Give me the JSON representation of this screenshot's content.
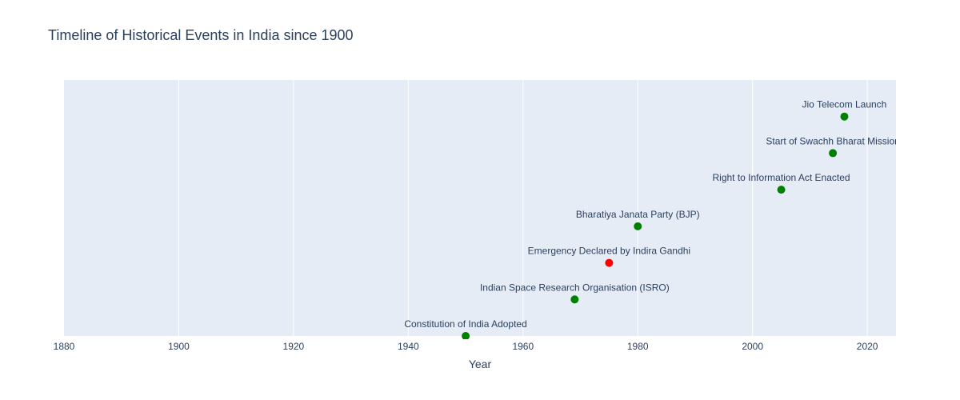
{
  "chart_data": {
    "type": "scatter",
    "title": "Timeline of Historical Events in India since 1900",
    "xlabel": "Year",
    "ylabel": "",
    "xlim": [
      1880,
      2025
    ],
    "ylim": [
      0,
      7
    ],
    "x_ticks": [
      "1880",
      "1900",
      "1920",
      "1940",
      "1960",
      "1980",
      "2000",
      "2020"
    ],
    "grid": true,
    "plot_background": "#e5ecf6",
    "gridline_color": "#ffffff",
    "text_color": "#2a3f5f",
    "points": [
      {
        "year": 1950,
        "level": 0,
        "label": "Constitution of India Adopted",
        "color": "#008000"
      },
      {
        "year": 1969,
        "level": 1,
        "label": "Indian Space Research Organisation (ISRO)",
        "color": "#008000"
      },
      {
        "year": 1975,
        "level": 2,
        "label": "Emergency Declared by Indira Gandhi",
        "color": "#ff0000"
      },
      {
        "year": 1980,
        "level": 3,
        "label": "Bharatiya Janata Party (BJP)",
        "color": "#008000"
      },
      {
        "year": 2005,
        "level": 4,
        "label": "Right to Information Act Enacted",
        "color": "#008000"
      },
      {
        "year": 2014,
        "level": 5,
        "label": "Start of Swachh Bharat Mission",
        "color": "#008000"
      },
      {
        "year": 2016,
        "level": 6,
        "label": "Jio Telecom Launch",
        "color": "#008000"
      }
    ]
  }
}
